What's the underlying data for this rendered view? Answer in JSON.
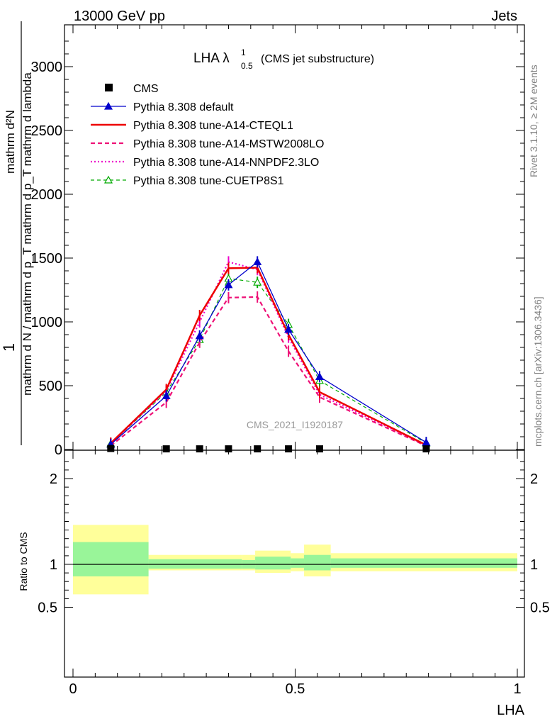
{
  "header": {
    "left": "13000 GeV pp",
    "right": "Jets",
    "title_main": "LHA λ",
    "title_sup": "1",
    "title_sub": "0.5",
    "title_extra": "(CMS jet substructure)",
    "analysis_label": "CMS_2021_I1920187",
    "side_rivet": "Rivet 3.1.10, ≥ 2M events",
    "side_mcplots": "mcplots.cern.ch [arXiv:1306.3436]"
  },
  "chart_data": {
    "type": "line",
    "xlabel": "LHA",
    "ylabel_main_num": "1",
    "ylabel_main_den": "mathrm d N / mathrm d p_T mathrm d p_T mathrm d lambda",
    "ylabel_main_top": "mathrm d²N",
    "ylabel_ratio": "Ratio to CMS",
    "xlim": [
      0,
      1
    ],
    "ylim_main": [
      0,
      3300
    ],
    "ylim_ratio": [
      0.4,
      2.3
    ],
    "main_y_ticks": [
      "0",
      "500",
      "1000",
      "1500",
      "2000",
      "2500",
      "3000"
    ],
    "x_ticks": [
      "0",
      "0.5",
      "1"
    ],
    "ratio_y_ticks": [
      "0.5",
      "1",
      "2"
    ],
    "series": [
      {
        "name": "CMS",
        "color": "#000000",
        "style": "data",
        "x": [
          0.085,
          0.21,
          0.285,
          0.35,
          0.415,
          0.485,
          0.555,
          0.795
        ],
        "y": [
          8,
          5,
          5,
          5,
          5,
          5,
          5,
          5
        ]
      },
      {
        "name": "Pythia 8.308 default",
        "color": "#0000cc",
        "style": "solid-triangle",
        "x": [
          0.085,
          0.21,
          0.285,
          0.35,
          0.415,
          0.485,
          0.555,
          0.795
        ],
        "y": [
          40,
          420,
          890,
          1290,
          1470,
          940,
          570,
          55
        ]
      },
      {
        "name": "Pythia 8.308 tune-A14-CTEQL1",
        "color": "#ee0000",
        "style": "solid-thick",
        "x": [
          0.085,
          0.21,
          0.285,
          0.35,
          0.415,
          0.485,
          0.555,
          0.795
        ],
        "y": [
          50,
          470,
          1050,
          1420,
          1425,
          900,
          450,
          35
        ]
      },
      {
        "name": "Pythia 8.308 tune-A14-MSTW2008LO",
        "color": "#ee1177",
        "style": "dashed",
        "x": [
          0.085,
          0.21,
          0.285,
          0.35,
          0.415,
          0.485,
          0.555,
          0.795
        ],
        "y": [
          30,
          370,
          840,
          1190,
          1195,
          770,
          410,
          28
        ]
      },
      {
        "name": "Pythia 8.308 tune-A14-NNPDF2.3LO",
        "color": "#ee00cc",
        "style": "dotted",
        "x": [
          0.085,
          0.21,
          0.285,
          0.35,
          0.415,
          0.485,
          0.555,
          0.795
        ],
        "y": [
          45,
          460,
          1000,
          1470,
          1410,
          880,
          430,
          32
        ]
      },
      {
        "name": "Pythia 8.308 tune-CUETP8S1",
        "color": "#00aa00",
        "style": "dashed-open-triangle",
        "x": [
          0.085,
          0.21,
          0.285,
          0.35,
          0.415,
          0.485,
          0.555,
          0.795
        ],
        "y": [
          45,
          450,
          860,
          1340,
          1310,
          980,
          540,
          50
        ]
      }
    ],
    "ratio_bands": {
      "edges": [
        0,
        0.17,
        0.38,
        0.41,
        0.49,
        0.52,
        0.58,
        1.0
      ],
      "inner": [
        [
          0.86,
          1.26
        ],
        [
          0.95,
          1.06
        ],
        [
          0.95,
          1.05
        ],
        [
          0.94,
          1.09
        ],
        [
          0.96,
          1.07
        ],
        [
          0.93,
          1.11
        ],
        [
          0.96,
          1.07
        ]
      ],
      "outer": [
        [
          0.65,
          1.46
        ],
        [
          0.93,
          1.11
        ],
        [
          0.93,
          1.11
        ],
        [
          0.9,
          1.16
        ],
        [
          0.92,
          1.13
        ],
        [
          0.86,
          1.23
        ],
        [
          0.92,
          1.13
        ]
      ],
      "inner_color": "#99f599",
      "outer_color": "#ffff9a"
    }
  }
}
